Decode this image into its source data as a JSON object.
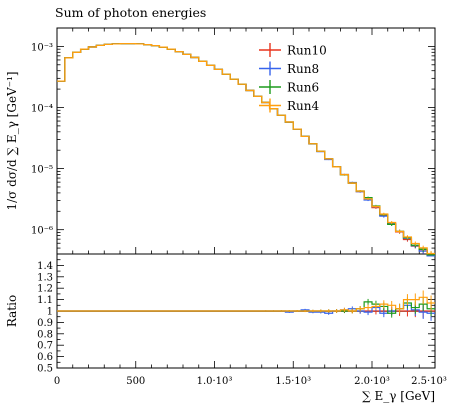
{
  "chart_data": {
    "type": "line",
    "title": "Sum of photon energies",
    "xlabel": "∑ E_γ [GeV]",
    "ylabel": "1/σ dσ/d ∑ E_γ [GeV⁻¹]",
    "ratio_ylabel": "Ratio",
    "xlim": [
      0,
      2400
    ],
    "ylim": [
      4e-07,
      0.002
    ],
    "yscale": "log",
    "ratio_ylim": [
      0.5,
      1.5
    ],
    "x_ticks": [
      {
        "value": 0,
        "label": "0"
      },
      {
        "value": 500,
        "label": "500"
      },
      {
        "value": 1000,
        "label": "1.0·10³"
      },
      {
        "value": 1500,
        "label": "1.5·10³"
      },
      {
        "value": 2000,
        "label": "2.0·10³"
      },
      {
        "value": 2500,
        "label": "2.5·10³"
      }
    ],
    "y_ticks": [
      {
        "value": 0.001,
        "label": "10⁻³"
      },
      {
        "value": 0.0001,
        "label": "10⁻⁴"
      },
      {
        "value": 1e-05,
        "label": "10⁻⁵"
      },
      {
        "value": 1e-06,
        "label": "10⁻⁶"
      }
    ],
    "ratio_ticks": [
      {
        "value": 0.5,
        "label": "0.5"
      },
      {
        "value": 0.6,
        "label": "0.6"
      },
      {
        "value": 0.7,
        "label": "0.7"
      },
      {
        "value": 0.8,
        "label": "0.8"
      },
      {
        "value": 0.9,
        "label": "0.9"
      },
      {
        "value": 1.0,
        "label": "1"
      },
      {
        "value": 1.1,
        "label": "1.1"
      },
      {
        "value": 1.2,
        "label": "1.2"
      },
      {
        "value": 1.3,
        "label": "1.3"
      },
      {
        "value": 1.4,
        "label": "1.4"
      }
    ],
    "legend_position": "top-right",
    "grid": false,
    "bin_edges": [
      0,
      50,
      100,
      150,
      200,
      250,
      300,
      350,
      400,
      450,
      500,
      550,
      600,
      650,
      700,
      750,
      800,
      850,
      900,
      950,
      1000,
      1050,
      1100,
      1150,
      1200,
      1250,
      1300,
      1350,
      1400,
      1450,
      1500,
      1550,
      1600,
      1650,
      1700,
      1750,
      1800,
      1850,
      1900,
      1950,
      2000,
      2050,
      2100,
      2150,
      2200,
      2250,
      2300,
      2350,
      2400
    ],
    "reference_values": [
      0.00027,
      0.00065,
      0.0008,
      0.0009,
      0.00098,
      0.00104,
      0.00108,
      0.0011,
      0.00111,
      0.00111,
      0.0011,
      0.00107,
      0.00103,
      0.00097,
      0.0009,
      0.00082,
      0.00074,
      0.00066,
      0.00057,
      0.00049,
      0.00042,
      0.00035,
      0.00029,
      0.00024,
      0.00019,
      0.000152,
      0.000121,
      9.55e-05,
      7.46e-05,
      5.78e-05,
      4.43e-05,
      3.37e-05,
      2.55e-05,
      1.92e-05,
      1.44e-05,
      1.07e-05,
      7.9e-06,
      5.8e-06,
      4.2e-06,
      3.1e-06,
      2.3e-06,
      1.7e-06,
      1.25e-06,
      9.2e-07,
      6.9e-07,
      5.4e-07,
      4.5e-07,
      3.8e-07
    ],
    "series": [
      {
        "name": "Run10",
        "color": "#e8341c",
        "ratio": [
          1,
          1,
          1,
          1,
          1,
          1,
          1,
          1,
          1,
          1,
          1,
          1,
          1,
          1,
          1,
          1,
          1,
          1,
          1,
          1,
          1,
          1,
          1,
          1,
          1,
          1,
          1,
          1,
          1,
          1,
          1,
          1,
          1,
          1,
          1,
          1,
          1,
          1,
          1,
          1,
          1,
          1,
          1,
          1,
          1,
          1,
          1,
          1
        ],
        "ratio_err": [
          0.003,
          0.002,
          0.002,
          0.002,
          0.002,
          0.002,
          0.002,
          0.002,
          0.002,
          0.002,
          0.002,
          0.002,
          0.002,
          0.002,
          0.002,
          0.002,
          0.002,
          0.002,
          0.002,
          0.002,
          0.003,
          0.003,
          0.003,
          0.003,
          0.004,
          0.004,
          0.005,
          0.005,
          0.006,
          0.007,
          0.008,
          0.009,
          0.01,
          0.012,
          0.014,
          0.016,
          0.018,
          0.02,
          0.023,
          0.026,
          0.03,
          0.034,
          0.038,
          0.043,
          0.048,
          0.054,
          0.06,
          0.066
        ]
      },
      {
        "name": "Run8",
        "color": "#3764ed",
        "ratio": [
          1,
          1,
          1,
          1,
          1,
          1,
          1,
          1,
          1,
          1,
          1,
          1,
          1,
          1,
          1,
          1,
          1,
          1,
          1,
          1,
          1,
          1,
          1,
          1,
          1,
          1,
          1,
          1,
          1,
          0.99,
          1,
          1.01,
          0.99,
          0.99,
          0.98,
          1,
          1.01,
          1.02,
          1,
          0.99,
          1.03,
          0.98,
          1,
          1.02,
          1.05,
          1.01,
          0.99,
          0.98
        ],
        "ratio_err": [
          0.003,
          0.002,
          0.002,
          0.002,
          0.002,
          0.002,
          0.002,
          0.002,
          0.002,
          0.002,
          0.002,
          0.002,
          0.002,
          0.002,
          0.002,
          0.002,
          0.002,
          0.002,
          0.002,
          0.002,
          0.003,
          0.003,
          0.003,
          0.003,
          0.004,
          0.004,
          0.005,
          0.005,
          0.006,
          0.007,
          0.008,
          0.009,
          0.01,
          0.012,
          0.014,
          0.016,
          0.018,
          0.02,
          0.023,
          0.026,
          0.03,
          0.034,
          0.038,
          0.043,
          0.048,
          0.054,
          0.06,
          0.066
        ]
      },
      {
        "name": "Run6",
        "color": "#1d9c1d",
        "ratio": [
          1,
          1,
          1,
          1,
          1,
          1,
          1,
          1,
          1,
          1,
          1,
          1,
          1,
          1,
          1,
          1,
          1,
          1,
          1,
          1,
          1,
          1,
          1,
          1,
          1,
          1,
          1,
          1,
          1,
          1,
          1,
          1,
          1,
          1,
          1,
          1,
          1,
          1,
          1.02,
          1.08,
          1.06,
          1.04,
          0.98,
          1.02,
          1.07,
          1.03,
          1.06,
          1.02
        ],
        "ratio_err": [
          0.003,
          0.002,
          0.002,
          0.002,
          0.002,
          0.002,
          0.002,
          0.002,
          0.002,
          0.002,
          0.002,
          0.002,
          0.002,
          0.002,
          0.002,
          0.002,
          0.002,
          0.002,
          0.002,
          0.002,
          0.003,
          0.003,
          0.003,
          0.003,
          0.004,
          0.004,
          0.005,
          0.005,
          0.006,
          0.007,
          0.008,
          0.009,
          0.01,
          0.012,
          0.014,
          0.016,
          0.018,
          0.02,
          0.023,
          0.026,
          0.03,
          0.034,
          0.038,
          0.043,
          0.048,
          0.054,
          0.06,
          0.066
        ]
      },
      {
        "name": "Run4",
        "color": "#ff9f0f",
        "ratio": [
          1,
          1,
          1,
          1,
          1,
          1,
          1,
          1,
          1,
          1,
          1,
          1,
          1,
          1,
          1,
          1,
          1,
          1,
          1,
          1,
          1,
          1,
          1,
          1,
          1,
          1,
          1,
          1,
          1,
          1,
          1,
          1,
          1,
          1,
          1,
          1,
          1.01,
          1,
          1.02,
          1.03,
          1.04,
          1.06,
          1.05,
          1.02,
          1.1,
          1.1,
          1.12,
          1.07
        ],
        "ratio_err": [
          0.003,
          0.002,
          0.002,
          0.002,
          0.002,
          0.002,
          0.002,
          0.002,
          0.002,
          0.002,
          0.002,
          0.002,
          0.002,
          0.002,
          0.002,
          0.002,
          0.002,
          0.002,
          0.002,
          0.002,
          0.003,
          0.003,
          0.003,
          0.003,
          0.004,
          0.004,
          0.005,
          0.005,
          0.006,
          0.007,
          0.008,
          0.009,
          0.01,
          0.012,
          0.014,
          0.016,
          0.018,
          0.02,
          0.023,
          0.026,
          0.03,
          0.034,
          0.038,
          0.043,
          0.048,
          0.054,
          0.06,
          0.066
        ]
      }
    ]
  }
}
